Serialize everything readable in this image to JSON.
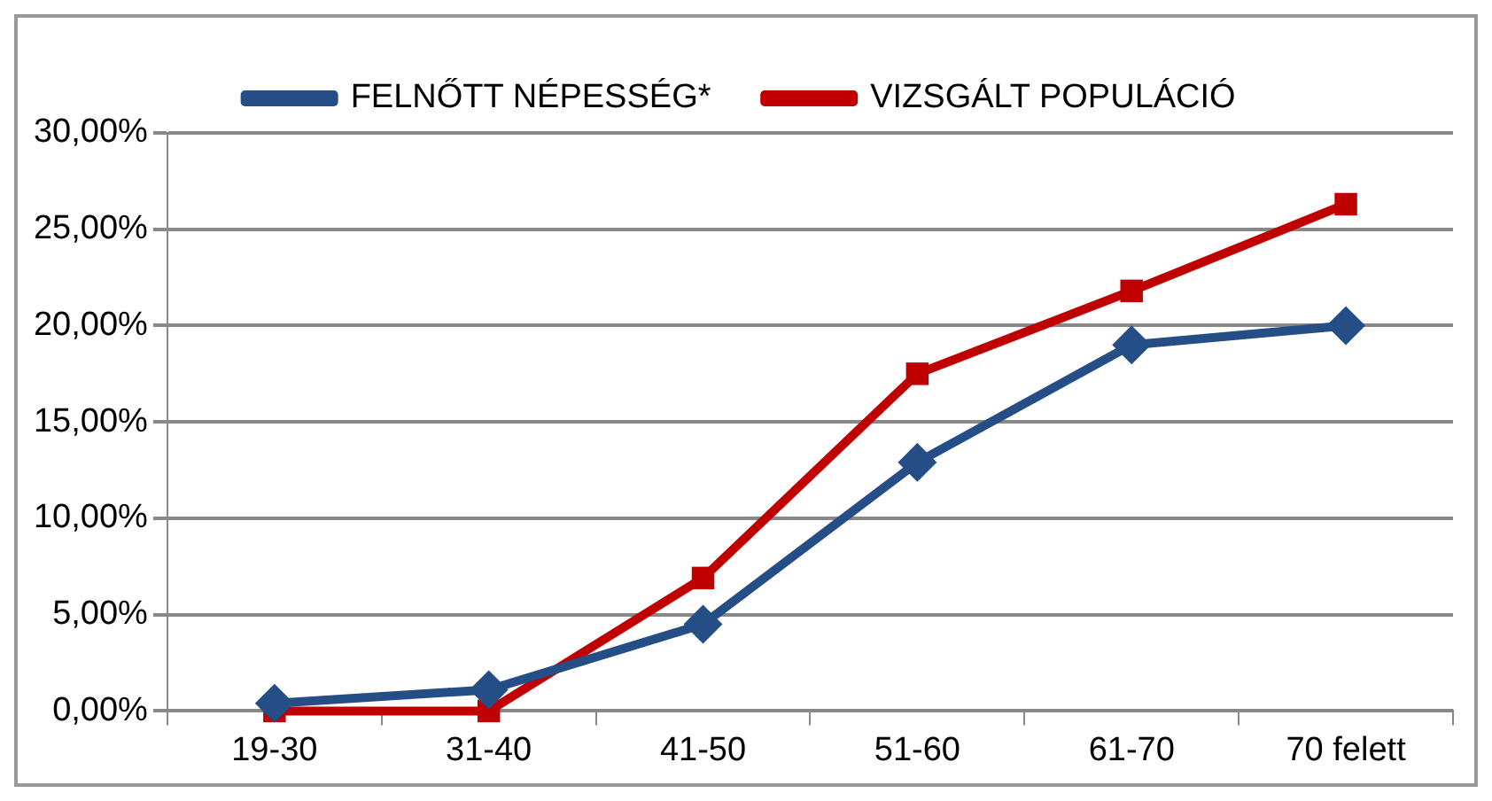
{
  "chart_data": {
    "type": "line",
    "categories": [
      "19-30",
      "31-40",
      "41-50",
      "51-60",
      "61-70",
      "70 felett"
    ],
    "series": [
      {
        "name": "FELNŐTT NÉPESSÉG*",
        "color": "#254e87",
        "marker": "diamond",
        "values": [
          0.4,
          1.1,
          4.5,
          12.9,
          19.0,
          20.0
        ]
      },
      {
        "name": "VIZSGÁLT POPULÁCIÓ",
        "color": "#c00000",
        "marker": "square",
        "values": [
          0,
          0,
          6.9,
          17.5,
          21.8,
          26.3
        ]
      }
    ],
    "ylim": [
      0,
      30
    ],
    "yticks": [
      {
        "value": 0,
        "label": "0,00%"
      },
      {
        "value": 5,
        "label": "5,00%"
      },
      {
        "value": 10,
        "label": "10,00%"
      },
      {
        "value": 15,
        "label": "15,00%"
      },
      {
        "value": 20,
        "label": "20,00%"
      },
      {
        "value": 25,
        "label": "25,00%"
      },
      {
        "value": 30,
        "label": "30,00%"
      }
    ],
    "grid": "y",
    "legend": "top",
    "line_style": "solid"
  }
}
